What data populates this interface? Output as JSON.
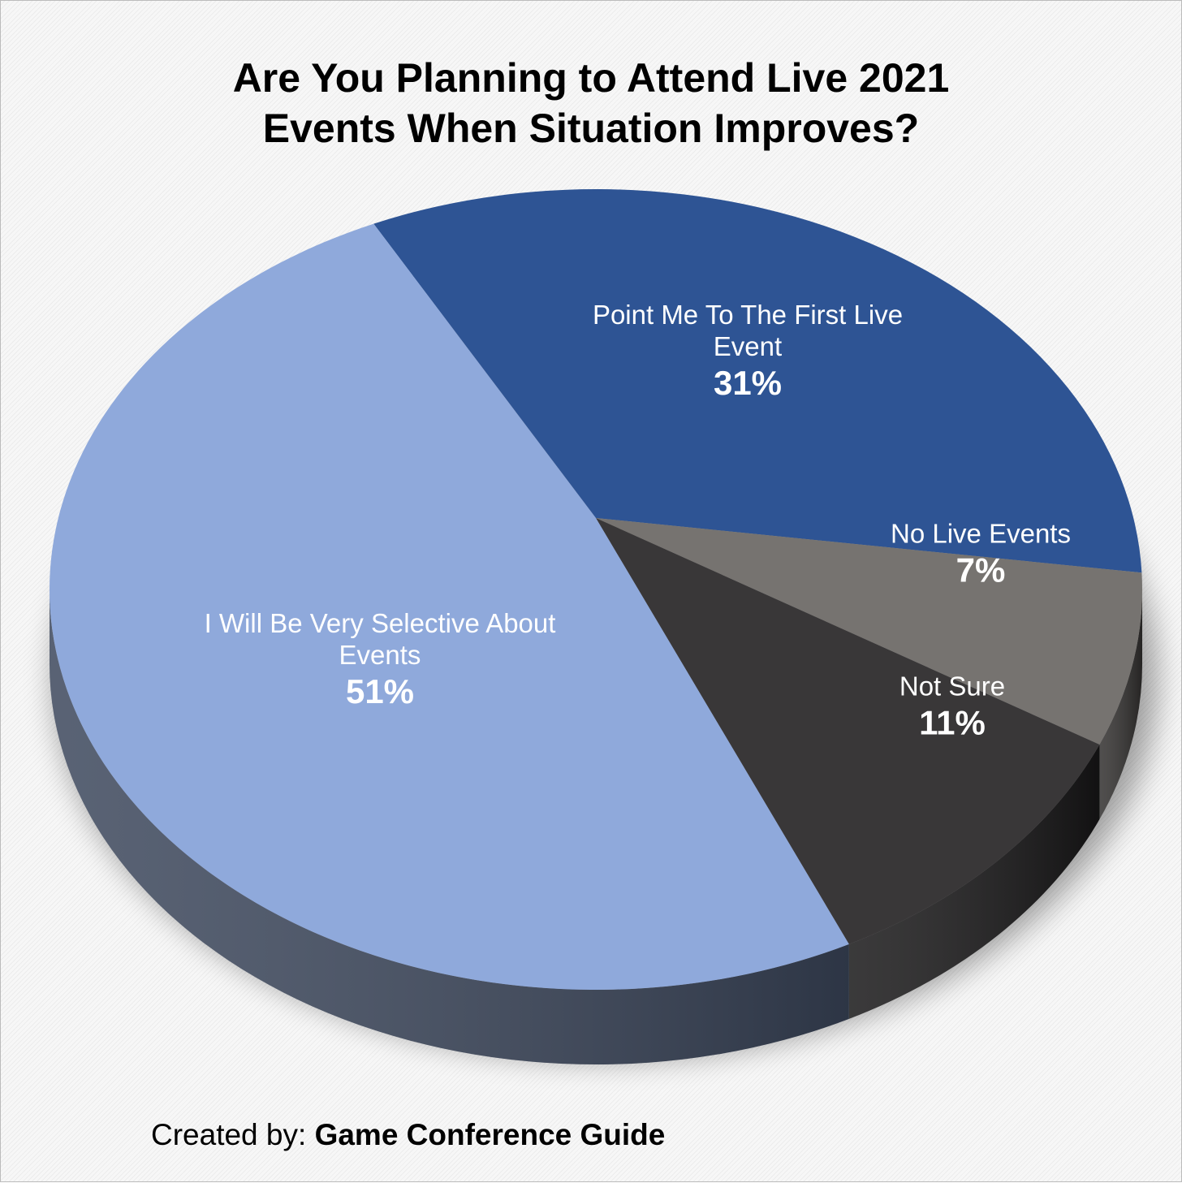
{
  "chart_data": {
    "type": "pie",
    "title": [
      "Are You Planning to Attend Live 2021",
      "Events When Situation Improves?"
    ],
    "categories": [
      "Point Me To The First Live Event",
      "No Live Events",
      "Not Sure",
      "I Will Be Very Selective About Events"
    ],
    "values": [
      31,
      7,
      11,
      51
    ],
    "value_labels": [
      "31%",
      "7%",
      "11%",
      "51%"
    ],
    "colors": [
      "#2e5494",
      "#767370",
      "#393738",
      "#8fa9db"
    ],
    "credit": {
      "prefix": "Created by:",
      "name": "Game Conference Guide"
    }
  }
}
